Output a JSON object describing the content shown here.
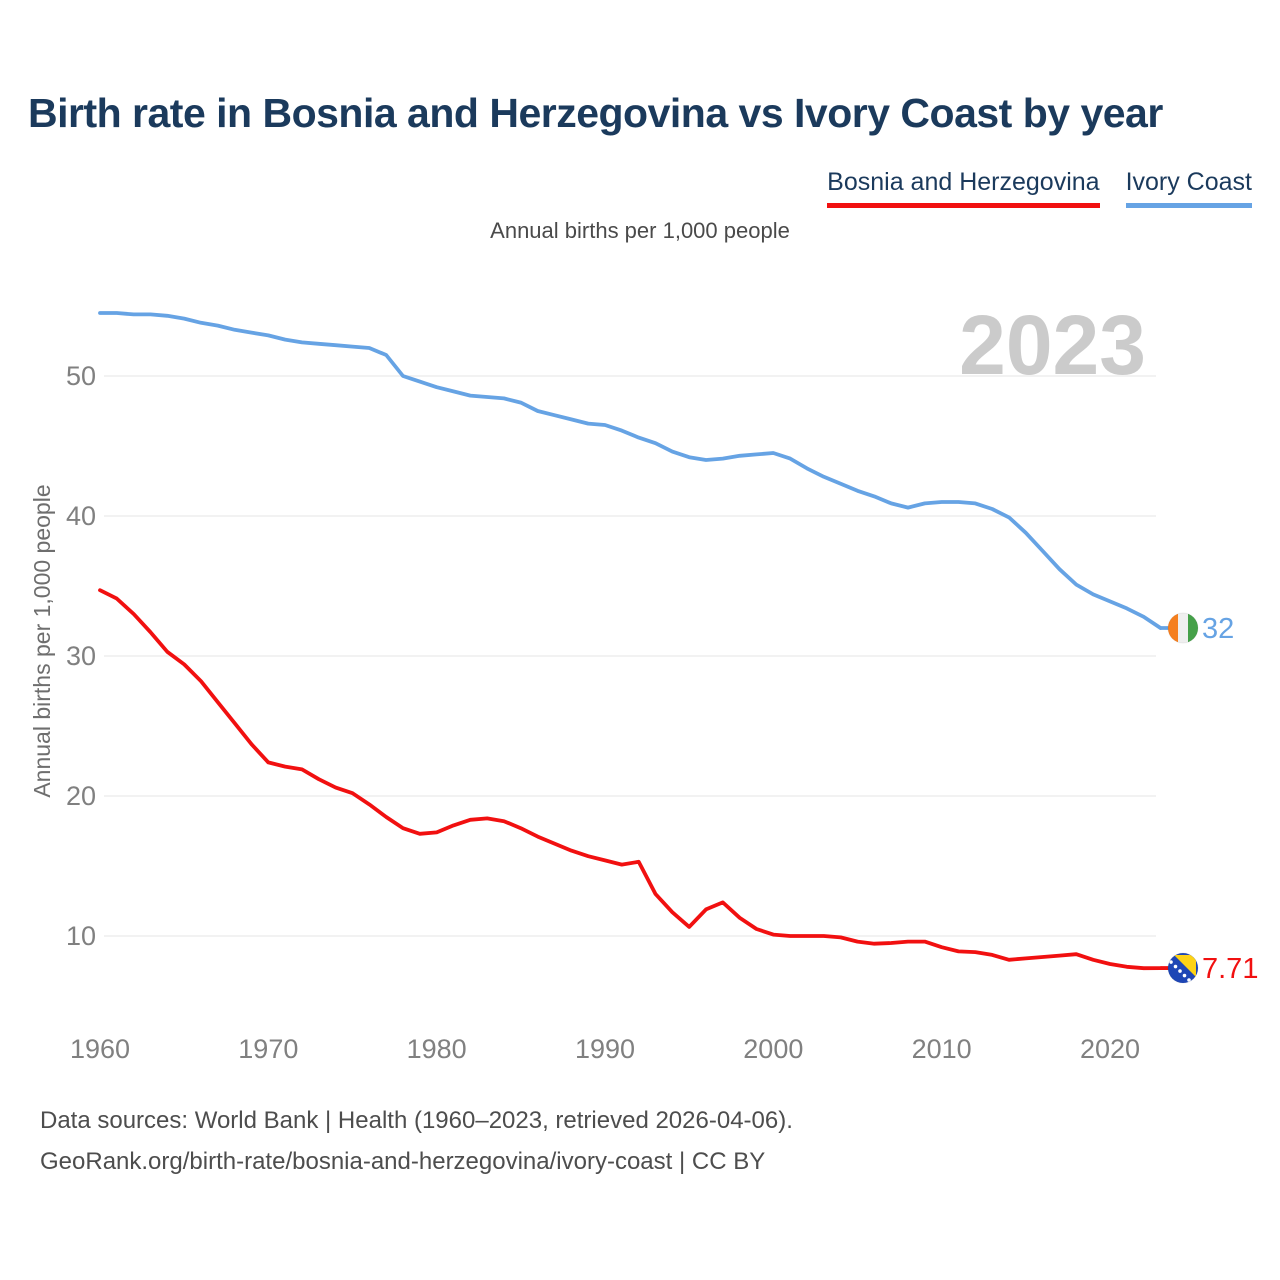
{
  "page": {
    "title": "Birth rate in Bosnia and Herzegovina vs Ivory Coast by year",
    "subtitle": "Annual births per 1,000 people",
    "watermark": "2023",
    "footer_line1": "Data sources: World Bank | Health (1960–2023, retrieved 2026-04-06).",
    "footer_line2": "GeoRank.org/birth-rate/bosnia-and-herzegovina/ivory-coast | CC BY"
  },
  "legend": {
    "items": [
      {
        "label": "Bosnia and Herzegovina",
        "color": "#f11010"
      },
      {
        "label": "Ivory Coast",
        "color": "#66a3e4"
      }
    ]
  },
  "colors": {
    "title_navy": "#1b3a5c",
    "gridline": "#eeeeee",
    "tick_label": "#808080",
    "watermark_gray": "#cbcbcb"
  },
  "flags": {
    "ivory_coast": {
      "stripes": [
        "#f57f1f",
        "#efefef",
        "#45a049"
      ]
    },
    "bosnia": {
      "field": "#1e46b5",
      "triangle": "#fdd215",
      "stars": "#ffffff"
    }
  },
  "chart_data": {
    "type": "line",
    "title": "Birth rate in Bosnia and Herzegovina vs Ivory Coast by year",
    "subtitle": "Annual births per 1,000 people",
    "xlabel": "",
    "ylabel": "Annual births per 1,000 people",
    "grid": "horizontal",
    "legend_position": "top-right",
    "ylim": [
      5,
      58
    ],
    "y_ticks": [
      10,
      20,
      30,
      40,
      50
    ],
    "x_ticks": [
      1960,
      1970,
      1980,
      1990,
      2000,
      2010,
      2020
    ],
    "watermark": "2023",
    "x": [
      1960,
      1961,
      1962,
      1963,
      1964,
      1965,
      1966,
      1967,
      1968,
      1969,
      1970,
      1971,
      1972,
      1973,
      1974,
      1975,
      1976,
      1977,
      1978,
      1979,
      1980,
      1981,
      1982,
      1983,
      1984,
      1985,
      1986,
      1987,
      1988,
      1989,
      1990,
      1991,
      1992,
      1993,
      1994,
      1995,
      1996,
      1997,
      1998,
      1999,
      2000,
      2001,
      2002,
      2003,
      2004,
      2005,
      2006,
      2007,
      2008,
      2009,
      2010,
      2011,
      2012,
      2013,
      2014,
      2015,
      2016,
      2017,
      2018,
      2019,
      2020,
      2021,
      2022,
      2023
    ],
    "series": [
      {
        "name": "Bosnia and Herzegovina",
        "color": "#f11010",
        "end_label": "7.71",
        "flag": "bosnia",
        "values": [
          34.7,
          34.1,
          33.0,
          31.7,
          30.3,
          29.4,
          28.2,
          26.7,
          25.2,
          23.7,
          22.4,
          22.1,
          21.9,
          21.2,
          20.6,
          20.2,
          19.4,
          18.5,
          17.7,
          17.3,
          17.4,
          17.9,
          18.3,
          18.4,
          18.2,
          17.7,
          17.1,
          16.6,
          16.1,
          15.7,
          15.4,
          15.1,
          15.3,
          13.0,
          11.7,
          10.65,
          11.9,
          12.4,
          11.3,
          10.5,
          10.1,
          10.0,
          10.0,
          10.0,
          9.9,
          9.6,
          9.45,
          9.5,
          9.6,
          9.6,
          9.2,
          8.9,
          8.85,
          8.65,
          8.3,
          8.4,
          8.5,
          8.6,
          8.7,
          8.3,
          8.0,
          7.8,
          7.7,
          7.71
        ]
      },
      {
        "name": "Ivory Coast",
        "color": "#66a3e4",
        "end_label": "32",
        "flag": "ivory_coast",
        "values": [
          54.5,
          54.5,
          54.4,
          54.4,
          54.3,
          54.1,
          53.8,
          53.6,
          53.3,
          53.1,
          52.9,
          52.6,
          52.4,
          52.3,
          52.2,
          52.1,
          52.0,
          51.5,
          50.0,
          49.6,
          49.2,
          48.9,
          48.6,
          48.5,
          48.4,
          48.1,
          47.5,
          47.2,
          46.9,
          46.6,
          46.5,
          46.1,
          45.6,
          45.2,
          44.6,
          44.2,
          44.0,
          44.1,
          44.3,
          44.4,
          44.5,
          44.1,
          43.4,
          42.8,
          42.3,
          41.8,
          41.4,
          40.9,
          40.6,
          40.9,
          41.0,
          41.0,
          40.9,
          40.5,
          39.9,
          38.8,
          37.5,
          36.2,
          35.1,
          34.4,
          33.9,
          33.4,
          32.8,
          32
        ]
      }
    ]
  }
}
